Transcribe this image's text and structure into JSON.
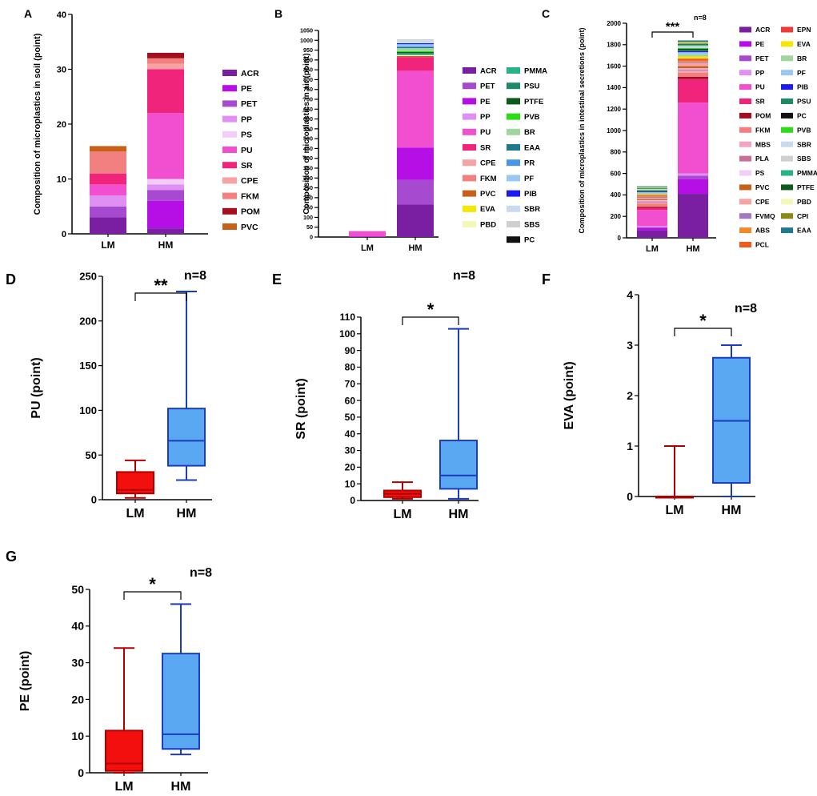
{
  "chart_data": [
    {
      "panel": "A",
      "type": "bar",
      "stacked": true,
      "ylabel": "Composition of microplastics in soil (point)",
      "categories": [
        "LM",
        "HM"
      ],
      "ylim": [
        0,
        40
      ],
      "yticks": [
        0,
        10,
        20,
        30,
        40
      ],
      "series": [
        {
          "name": "ACR",
          "color": "#7a1fa2",
          "values": [
            3,
            1
          ]
        },
        {
          "name": "PE",
          "color": "#b50fe6",
          "values": [
            0,
            5
          ]
        },
        {
          "name": "PET",
          "color": "#a64ad0",
          "values": [
            2,
            2
          ]
        },
        {
          "name": "PP",
          "color": "#df90f2",
          "values": [
            2,
            1
          ]
        },
        {
          "name": "PS",
          "color": "#f2cdf7",
          "values": [
            0,
            1
          ]
        },
        {
          "name": "PU",
          "color": "#f24fd0",
          "values": [
            2,
            12
          ]
        },
        {
          "name": "SR",
          "color": "#f0247a",
          "values": [
            2,
            8
          ]
        },
        {
          "name": "CPE",
          "color": "#f7a3a3",
          "values": [
            0,
            1
          ]
        },
        {
          "name": "FKM",
          "color": "#f28080",
          "values": [
            4,
            1
          ]
        },
        {
          "name": "POM",
          "color": "#a30f1e",
          "values": [
            0,
            1
          ]
        },
        {
          "name": "PVC",
          "color": "#c8601a",
          "values": [
            1,
            0
          ]
        }
      ]
    },
    {
      "panel": "B",
      "type": "bar",
      "stacked": true,
      "ylabel": "Composition of microplastics in air (point)",
      "categories": [
        "LM",
        "HM"
      ],
      "ylim": [
        0,
        1050
      ],
      "yticks": [
        0,
        50,
        100,
        150,
        200,
        250,
        300,
        350,
        400,
        450,
        500,
        550,
        600,
        650,
        700,
        750,
        800,
        850,
        900,
        950,
        1000,
        1050
      ],
      "series": [
        {
          "name": "ACR",
          "color": "#7a1fa2",
          "values": [
            0,
            165
          ]
        },
        {
          "name": "PET",
          "color": "#a64ad0",
          "values": [
            0,
            125
          ]
        },
        {
          "name": "PE",
          "color": "#b50fe6",
          "values": [
            3,
            165
          ]
        },
        {
          "name": "PP",
          "color": "#df90f2",
          "values": [
            0,
            0
          ]
        },
        {
          "name": "PU",
          "color": "#f24fd0",
          "values": [
            27,
            390
          ]
        },
        {
          "name": "SR",
          "color": "#f0247a",
          "values": [
            0,
            70
          ]
        },
        {
          "name": "CPE",
          "color": "#f7a3a3",
          "values": [
            0,
            0
          ]
        },
        {
          "name": "FKM",
          "color": "#f28080",
          "values": [
            0,
            0
          ]
        },
        {
          "name": "PVC",
          "color": "#c8601a",
          "values": [
            0,
            5
          ]
        },
        {
          "name": "EVA",
          "color": "#f5e700",
          "values": [
            0,
            0
          ]
        },
        {
          "name": "PBD",
          "color": "#f4f7b8",
          "values": [
            0,
            5
          ]
        },
        {
          "name": "PMMA",
          "color": "#27b386",
          "values": [
            0,
            5
          ]
        },
        {
          "name": "PSU",
          "color": "#1e8a63",
          "values": [
            0,
            5
          ]
        },
        {
          "name": "PTFE",
          "color": "#0e5a1c",
          "values": [
            0,
            5
          ]
        },
        {
          "name": "PVB",
          "color": "#2bdc16",
          "values": [
            0,
            5
          ]
        },
        {
          "name": "BR",
          "color": "#9ed69e",
          "values": [
            0,
            15
          ]
        },
        {
          "name": "EAA",
          "color": "#1f7a8e",
          "values": [
            0,
            5
          ]
        },
        {
          "name": "PR",
          "color": "#4a95e8",
          "values": [
            0,
            5
          ]
        },
        {
          "name": "PF",
          "color": "#9ac6f2",
          "values": [
            0,
            10
          ]
        },
        {
          "name": "PIB",
          "color": "#1b1bf2",
          "values": [
            0,
            5
          ]
        },
        {
          "name": "SBR",
          "color": "#c8daf0",
          "values": [
            0,
            15
          ]
        },
        {
          "name": "SBS",
          "color": "#cfcfcf",
          "values": [
            0,
            5
          ]
        },
        {
          "name": "PC",
          "color": "#111111",
          "values": [
            0,
            0
          ]
        }
      ]
    },
    {
      "panel": "C",
      "type": "bar",
      "stacked": true,
      "ylabel": "Composition of microplastics in intestinal secretions (point)",
      "categories": [
        "LM",
        "HM"
      ],
      "ylim": [
        0,
        2000
      ],
      "yticks": [
        0,
        200,
        400,
        600,
        800,
        1000,
        1200,
        1400,
        1600,
        1800,
        2000
      ],
      "significance": "***",
      "n_label": "n=8",
      "series": [
        {
          "name": "ACR",
          "color": "#7a1fa2",
          "values": [
            70,
            410
          ]
        },
        {
          "name": "PE",
          "color": "#b50fe6",
          "values": [
            20,
            140
          ]
        },
        {
          "name": "PET",
          "color": "#a64ad0",
          "values": [
            10,
            30
          ]
        },
        {
          "name": "PP",
          "color": "#df90f2",
          "values": [
            10,
            20
          ]
        },
        {
          "name": "PU",
          "color": "#f24fd0",
          "values": [
            150,
            660
          ]
        },
        {
          "name": "SR",
          "color": "#f0247a",
          "values": [
            20,
            220
          ]
        },
        {
          "name": "POM",
          "color": "#a30f1e",
          "values": [
            10,
            20
          ]
        },
        {
          "name": "FKM",
          "color": "#f28080",
          "values": [
            30,
            40
          ]
        },
        {
          "name": "MBS",
          "color": "#f2a6bd",
          "values": [
            10,
            20
          ]
        },
        {
          "name": "PLA",
          "color": "#c8709c",
          "values": [
            10,
            10
          ]
        },
        {
          "name": "PS",
          "color": "#f2cdf7",
          "values": [
            10,
            10
          ]
        },
        {
          "name": "PVC",
          "color": "#c8601a",
          "values": [
            10,
            20
          ]
        },
        {
          "name": "CPE",
          "color": "#f7a3a3",
          "values": [
            10,
            30
          ]
        },
        {
          "name": "FVMQ",
          "color": "#a37abf",
          "values": [
            10,
            10
          ]
        },
        {
          "name": "ABS",
          "color": "#f28a2a",
          "values": [
            10,
            10
          ]
        },
        {
          "name": "PCL",
          "color": "#f25a1a",
          "values": [
            5,
            10
          ]
        },
        {
          "name": "EPN",
          "color": "#f03a3a",
          "values": [
            5,
            10
          ]
        },
        {
          "name": "EVA",
          "color": "#f5e700",
          "values": [
            5,
            20
          ]
        },
        {
          "name": "BR",
          "color": "#9ed69e",
          "values": [
            10,
            20
          ]
        },
        {
          "name": "PF",
          "color": "#9ac6f2",
          "values": [
            10,
            20
          ]
        },
        {
          "name": "PIB",
          "color": "#1b1bf2",
          "values": [
            5,
            10
          ]
        },
        {
          "name": "PSU",
          "color": "#1e8a63",
          "values": [
            5,
            10
          ]
        },
        {
          "name": "PC",
          "color": "#111111",
          "values": [
            5,
            10
          ]
        },
        {
          "name": "PVB",
          "color": "#2bdc16",
          "values": [
            5,
            10
          ]
        },
        {
          "name": "SBR",
          "color": "#c8daf0",
          "values": [
            5,
            10
          ]
        },
        {
          "name": "SBS",
          "color": "#cfcfcf",
          "values": [
            5,
            10
          ]
        },
        {
          "name": "PMMA",
          "color": "#27b386",
          "values": [
            5,
            10
          ]
        },
        {
          "name": "PTFE",
          "color": "#0e5a1c",
          "values": [
            5,
            10
          ]
        },
        {
          "name": "PBD",
          "color": "#f4f7b8",
          "values": [
            5,
            10
          ]
        },
        {
          "name": "CPI",
          "color": "#8a8a12",
          "values": [
            5,
            10
          ]
        },
        {
          "name": "EAA",
          "color": "#1f7a8e",
          "values": [
            5,
            10
          ]
        }
      ]
    },
    {
      "panel": "D",
      "type": "box",
      "ylabel": "PU (point)",
      "categories": [
        "LM",
        "HM"
      ],
      "ylim": [
        0,
        250
      ],
      "yticks": [
        0,
        50,
        100,
        150,
        200,
        250
      ],
      "significance": "**",
      "n_label": "n=8",
      "boxes": [
        {
          "min": 2,
          "q1": 7,
          "median": 11,
          "q3": 31,
          "max": 44
        },
        {
          "min": 22,
          "q1": 38,
          "median": 66,
          "q3": 102,
          "max": 233
        }
      ]
    },
    {
      "panel": "E",
      "type": "box",
      "ylabel": "SR (point)",
      "categories": [
        "LM",
        "HM"
      ],
      "ylim": [
        0,
        110
      ],
      "yticks": [
        0,
        10,
        20,
        30,
        40,
        50,
        60,
        70,
        80,
        90,
        100,
        110
      ],
      "significance": "*",
      "n_label": "n=8",
      "boxes": [
        {
          "min": 1,
          "q1": 2,
          "median": 4,
          "q3": 6,
          "max": 11
        },
        {
          "min": 1,
          "q1": 7,
          "median": 15,
          "q3": 36,
          "max": 103
        }
      ]
    },
    {
      "panel": "F",
      "type": "box",
      "ylabel": "EVA (point)",
      "categories": [
        "LM",
        "HM"
      ],
      "ylim": [
        0,
        4
      ],
      "yticks": [
        0,
        1,
        2,
        3,
        4
      ],
      "significance": "*",
      "n_label": "n=8",
      "boxes": [
        {
          "min": 0,
          "q1": 0,
          "median": 0,
          "q3": 0,
          "max": 1
        },
        {
          "min": 0,
          "q1": 0.27,
          "median": 1.5,
          "q3": 2.75,
          "max": 3
        }
      ]
    },
    {
      "panel": "G",
      "type": "box",
      "ylabel": "PE (point)",
      "categories": [
        "LM",
        "HM"
      ],
      "ylim": [
        0,
        50
      ],
      "yticks": [
        0,
        10,
        20,
        30,
        40,
        50
      ],
      "significance": "*",
      "n_label": "n=8",
      "boxes": [
        {
          "min": 0,
          "q1": 0.5,
          "median": 2.5,
          "q3": 11.5,
          "max": 34
        },
        {
          "min": 5,
          "q1": 6.5,
          "median": 10.5,
          "q3": 32.5,
          "max": 46
        }
      ]
    }
  ],
  "colors": {
    "lm_fill": "#f40f0f",
    "lm_stroke": "#b00000",
    "hm_fill": "#5aa8f2",
    "hm_stroke": "#1a3cc0"
  }
}
